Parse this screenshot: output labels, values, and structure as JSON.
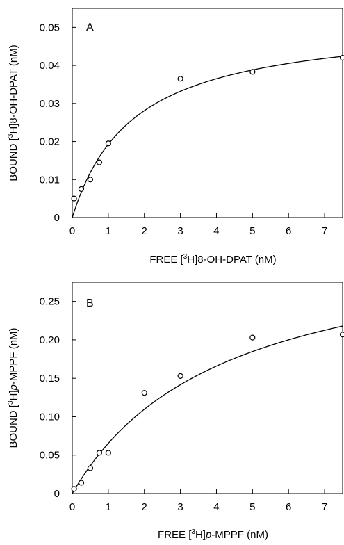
{
  "chart_data": [
    {
      "type": "scatter",
      "panel_label": "A",
      "xlabel_parts": {
        "pre": "FREE [",
        "sup": "3",
        "post": "H]8-OH-DPAT (nM)"
      },
      "ylabel_parts": {
        "pre": "BOUND [",
        "sup": "3",
        "post": "H]8-OH-DPAT (nM)"
      },
      "xlim": [
        0,
        7.5
      ],
      "ylim": [
        0,
        0.055
      ],
      "xticks": [
        0,
        1,
        2,
        3,
        4,
        5,
        6,
        7
      ],
      "xtick_labels": [
        "0",
        "1",
        "2",
        "3",
        "4",
        "5",
        "6",
        "7"
      ],
      "yticks": [
        0,
        0.01,
        0.02,
        0.03,
        0.04,
        0.05
      ],
      "ytick_labels": [
        "0",
        "0.01",
        "0.02",
        "0.03",
        "0.04",
        "0.05"
      ],
      "points": [
        {
          "x": 0.05,
          "y": 0.005
        },
        {
          "x": 0.25,
          "y": 0.0075
        },
        {
          "x": 0.5,
          "y": 0.01
        },
        {
          "x": 0.75,
          "y": 0.0145
        },
        {
          "x": 1.0,
          "y": 0.0195
        },
        {
          "x": 3.0,
          "y": 0.0365
        },
        {
          "x": 5.0,
          "y": 0.0383
        },
        {
          "x": 7.5,
          "y": 0.042
        }
      ],
      "fit": {
        "model": "Bmax*x/(Kd+x)",
        "Bmax": 0.052,
        "Kd": 1.7
      },
      "grid": false,
      "legend": "none"
    },
    {
      "type": "scatter",
      "panel_label": "B",
      "xlabel_parts": {
        "pre": "FREE [",
        "sup": "3",
        "post": "H]",
        "ital": "p",
        "post2": "-MPPF (nM)"
      },
      "ylabel_parts": {
        "pre": "BOUND [",
        "sup": "3",
        "post": "H]",
        "ital": "p",
        "post2": "-MPPF (nM)"
      },
      "xlim": [
        0,
        7.5
      ],
      "ylim": [
        0,
        0.275
      ],
      "xticks": [
        0,
        1,
        2,
        3,
        4,
        5,
        6,
        7
      ],
      "xtick_labels": [
        "0",
        "1",
        "2",
        "3",
        "4",
        "5",
        "6",
        "7"
      ],
      "yticks": [
        0,
        0.05,
        0.1,
        0.15,
        0.2,
        0.25
      ],
      "ytick_labels": [
        "0",
        "0.05",
        "0.10",
        "0.15",
        "0.20",
        "0.25"
      ],
      "points": [
        {
          "x": 0.05,
          "y": 0.006
        },
        {
          "x": 0.25,
          "y": 0.014
        },
        {
          "x": 0.5,
          "y": 0.033
        },
        {
          "x": 0.75,
          "y": 0.053
        },
        {
          "x": 1.0,
          "y": 0.053
        },
        {
          "x": 2.0,
          "y": 0.131
        },
        {
          "x": 3.0,
          "y": 0.153
        },
        {
          "x": 5.0,
          "y": 0.203
        },
        {
          "x": 7.5,
          "y": 0.207
        }
      ],
      "fit": {
        "model": "Bmax*x/(Kd+x)",
        "Bmax": 0.34,
        "Kd": 4.2
      },
      "grid": false,
      "legend": "none"
    }
  ]
}
